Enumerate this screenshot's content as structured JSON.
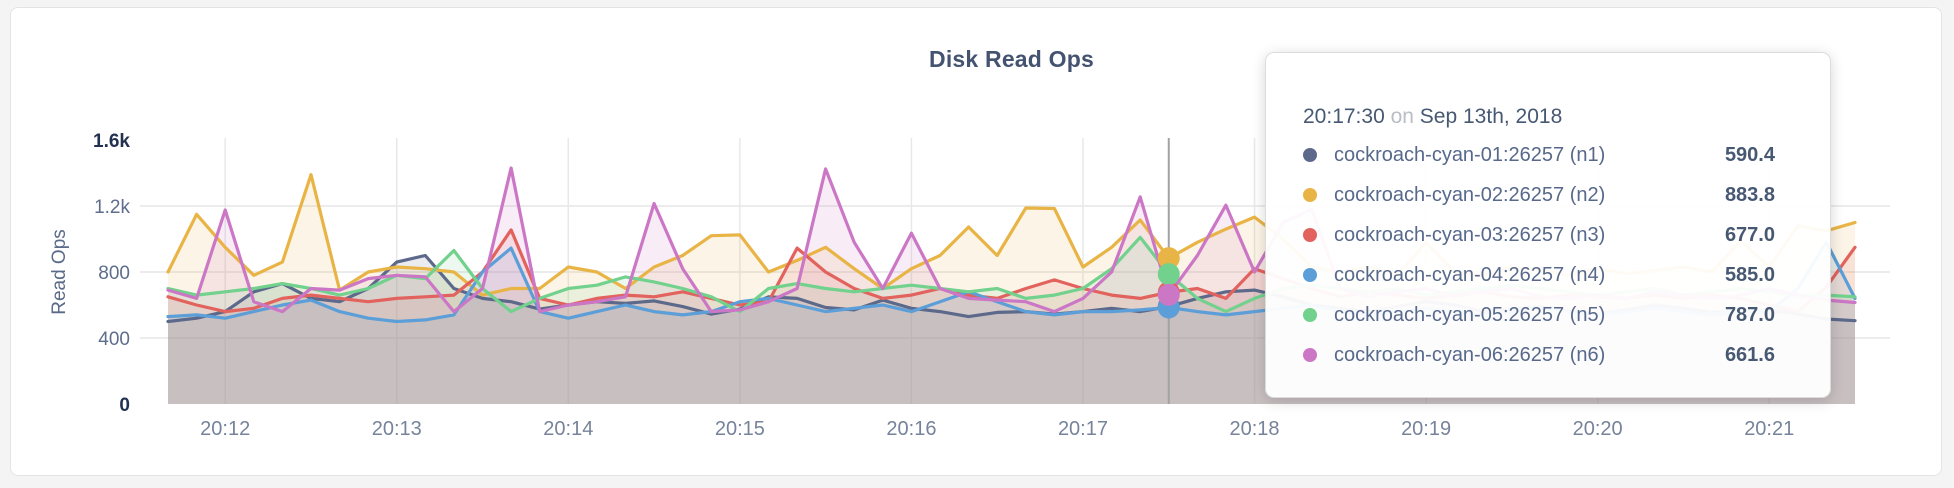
{
  "window": {
    "background": "#f4f4f4",
    "card_border": "#e4e4e4"
  },
  "chart_data": {
    "type": "area",
    "title": "Disk Read Ops",
    "ylabel": "Read Ops",
    "ylim": [
      0,
      1600
    ],
    "grid": true,
    "legend_position": "tooltip-only",
    "x_start_time": "20:11:40",
    "x_step_seconds": 10,
    "x_domain_seconds": 590,
    "x_ticks": {
      "first_offset_s": 20,
      "interval_s": 60,
      "labels": [
        "20:12",
        "20:13",
        "20:14",
        "20:15",
        "20:16",
        "20:17",
        "20:18",
        "20:19",
        "20:20",
        "20:21"
      ]
    },
    "y_ticks": [
      {
        "value": 0,
        "label": "0",
        "emph": true
      },
      {
        "value": 400,
        "label": "400",
        "emph": false
      },
      {
        "value": 800,
        "label": "800",
        "emph": false
      },
      {
        "value": 1200,
        "label": "1.2k",
        "emph": false
      },
      {
        "value": 1600,
        "label": "1.6k",
        "emph": true
      }
    ],
    "hover": {
      "offset_s": 350,
      "index": 35,
      "time_label": "20:17:30"
    },
    "series": [
      {
        "name": "cockroach-cyan-01:26257 (n1)",
        "short": "n1",
        "color": "#5C698A",
        "values": [
          500,
          520,
          560,
          680,
          730,
          640,
          620,
          700,
          860,
          900,
          700,
          640,
          620,
          575,
          600,
          620,
          610,
          625,
          590,
          545,
          575,
          650,
          640,
          585,
          570,
          630,
          580,
          560,
          530,
          555,
          560,
          545,
          560,
          580,
          560,
          590.4,
          640,
          680,
          690,
          650,
          600,
          580,
          560,
          590,
          620,
          600,
          560,
          575,
          590,
          560,
          545,
          570,
          600,
          580,
          555,
          560,
          570,
          545,
          515,
          505
        ]
      },
      {
        "name": "cockroach-cyan-02:26257 (n2)",
        "short": "n2",
        "color": "#E9B446",
        "values": [
          800,
          1150,
          950,
          780,
          860,
          1390,
          690,
          800,
          830,
          820,
          800,
          660,
          700,
          700,
          830,
          800,
          700,
          830,
          900,
          1020,
          1025,
          800,
          870,
          950,
          820,
          700,
          820,
          900,
          1073,
          900,
          1188,
          1185,
          830,
          950,
          1115,
          883.8,
          980,
          1060,
          1133,
          1000,
          830,
          800,
          830,
          780,
          980,
          800,
          780,
          830,
          810,
          780,
          820,
          790,
          810,
          830,
          800,
          990,
          830,
          1080,
          1050,
          1100
        ]
      },
      {
        "name": "cockroach-cyan-03:26257 (n3)",
        "short": "n3",
        "color": "#E2625D",
        "values": [
          650,
          600,
          560,
          580,
          640,
          660,
          640,
          620,
          640,
          650,
          660,
          800,
          1055,
          640,
          600,
          640,
          660,
          650,
          680,
          640,
          600,
          620,
          945,
          800,
          700,
          640,
          660,
          700,
          660,
          640,
          700,
          752,
          700,
          660,
          640,
          677,
          700,
          640,
          820,
          760,
          700,
          650,
          680,
          660,
          640,
          660,
          680,
          650,
          640,
          660,
          650,
          640,
          660,
          640,
          660,
          640,
          600,
          560,
          710,
          950
        ]
      },
      {
        "name": "cockroach-cyan-04:26257 (n4)",
        "short": "n4",
        "color": "#5C9ED7",
        "values": [
          530,
          540,
          520,
          560,
          600,
          630,
          560,
          520,
          500,
          510,
          540,
          800,
          945,
          560,
          520,
          560,
          600,
          560,
          540,
          560,
          620,
          640,
          600,
          560,
          580,
          600,
          560,
          620,
          680,
          620,
          560,
          540,
          560,
          560,
          570,
          585,
          560,
          540,
          560,
          580,
          600,
          560,
          540,
          560,
          580,
          560,
          540,
          560,
          580,
          560,
          540,
          560,
          580,
          560,
          540,
          560,
          560,
          700,
          980,
          640
        ]
      },
      {
        "name": "cockroach-cyan-05:26257 (n5)",
        "short": "n5",
        "color": "#71D18D",
        "values": [
          700,
          660,
          680,
          700,
          730,
          700,
          660,
          700,
          780,
          760,
          930,
          700,
          560,
          640,
          700,
          720,
          770,
          740,
          700,
          650,
          560,
          700,
          730,
          700,
          680,
          700,
          720,
          700,
          680,
          700,
          640,
          660,
          700,
          820,
          1010,
          787,
          640,
          560,
          640,
          700,
          720,
          700,
          680,
          700,
          660,
          680,
          700,
          720,
          700,
          680,
          660,
          680,
          700,
          660,
          680,
          700,
          680,
          660,
          660,
          650
        ]
      },
      {
        "name": "cockroach-cyan-06:26257 (n6)",
        "short": "n6",
        "color": "#CB77C5",
        "values": [
          690,
          640,
          1176,
          620,
          560,
          700,
          690,
          760,
          780,
          770,
          560,
          700,
          1430,
          560,
          600,
          620,
          650,
          1215,
          820,
          560,
          570,
          620,
          700,
          1425,
          980,
          700,
          1035,
          700,
          640,
          630,
          620,
          560,
          640,
          800,
          1255,
          661.6,
          900,
          1205,
          800,
          1100,
          1180,
          700,
          650,
          680,
          700,
          650,
          680,
          700,
          650,
          640,
          660,
          640,
          680,
          660,
          640,
          660,
          700,
          660,
          630,
          615
        ]
      }
    ]
  },
  "tooltip": {
    "time": "20:17:30",
    "conjunction": "on",
    "date": "Sep 13th, 2018",
    "rows": [
      {
        "name": "cockroach-cyan-01:26257 (n1)",
        "value": "590.4"
      },
      {
        "name": "cockroach-cyan-02:26257 (n2)",
        "value": "883.8"
      },
      {
        "name": "cockroach-cyan-03:26257 (n3)",
        "value": "677.0"
      },
      {
        "name": "cockroach-cyan-04:26257 (n4)",
        "value": "585.0"
      },
      {
        "name": "cockroach-cyan-05:26257 (n5)",
        "value": "787.0"
      },
      {
        "name": "cockroach-cyan-06:26257 (n6)",
        "value": "661.6"
      }
    ]
  }
}
